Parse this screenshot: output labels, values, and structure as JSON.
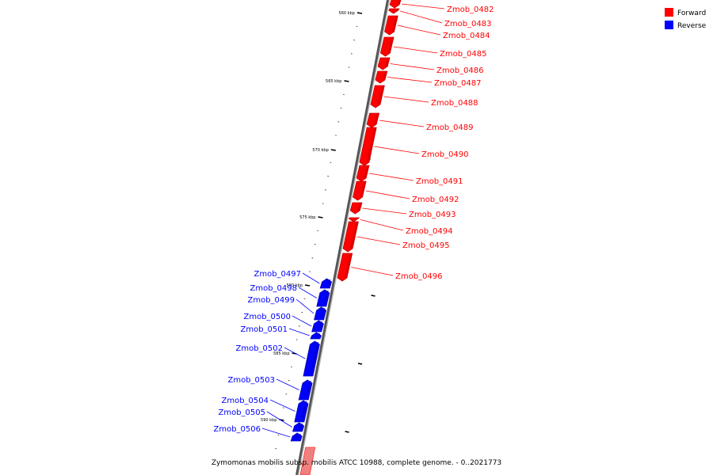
{
  "caption": "Zymomonas mobilis subsp. mobilis ATCC 10988, complete genome. - 0..2021773",
  "legend": [
    {
      "label": "Forward",
      "color": "#ff0000"
    },
    {
      "label": "Reverse",
      "color": "#0000ff"
    }
  ],
  "colors": {
    "forward": "#ff0000",
    "forward_dark": "#c40000",
    "reverse": "#0000ff",
    "reverse_dark": "#0000b0",
    "backbone": "#888888",
    "forward_faded": "#f08080"
  },
  "kbp_markers": [
    "560 kbp",
    "565 kbp",
    "570 kbp",
    "575 kbp",
    "580 kbp",
    "585 kbp",
    "590 kbp"
  ],
  "genes": [
    {
      "id": "Zmob_0482",
      "strand": "forward"
    },
    {
      "id": "Zmob_0483",
      "strand": "forward"
    },
    {
      "id": "Zmob_0484",
      "strand": "forward"
    },
    {
      "id": "Zmob_0485",
      "strand": "forward"
    },
    {
      "id": "Zmob_0486",
      "strand": "forward"
    },
    {
      "id": "Zmob_0487",
      "strand": "forward"
    },
    {
      "id": "Zmob_0488",
      "strand": "forward"
    },
    {
      "id": "Zmob_0489",
      "strand": "forward"
    },
    {
      "id": "Zmob_0490",
      "strand": "forward"
    },
    {
      "id": "Zmob_0491",
      "strand": "forward"
    },
    {
      "id": "Zmob_0492",
      "strand": "forward"
    },
    {
      "id": "Zmob_0493",
      "strand": "forward"
    },
    {
      "id": "Zmob_0494",
      "strand": "forward"
    },
    {
      "id": "Zmob_0495",
      "strand": "forward"
    },
    {
      "id": "Zmob_0496",
      "strand": "forward"
    },
    {
      "id": "Zmob_0497",
      "strand": "reverse"
    },
    {
      "id": "Zmob_0498",
      "strand": "reverse"
    },
    {
      "id": "Zmob_0499",
      "strand": "reverse"
    },
    {
      "id": "Zmob_0500",
      "strand": "reverse"
    },
    {
      "id": "Zmob_0501",
      "strand": "reverse"
    },
    {
      "id": "Zmob_0502",
      "strand": "reverse"
    },
    {
      "id": "Zmob_0503",
      "strand": "reverse"
    },
    {
      "id": "Zmob_0504",
      "strand": "reverse"
    },
    {
      "id": "Zmob_0505",
      "strand": "reverse"
    },
    {
      "id": "Zmob_0506",
      "strand": "reverse"
    }
  ]
}
